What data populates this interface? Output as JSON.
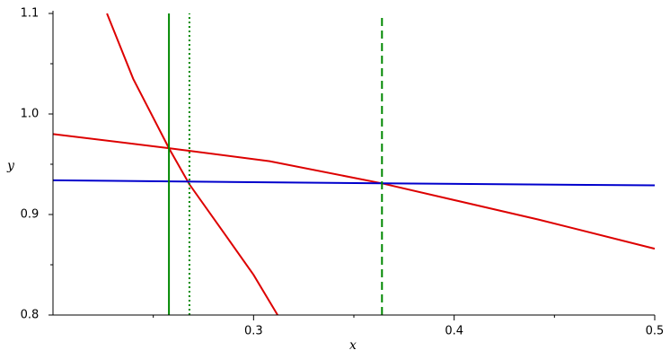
{
  "chart_data": {
    "type": "line",
    "x_label": "x",
    "y_label": "y",
    "xlim": [
      0.2,
      0.5
    ],
    "ylim": [
      0.8,
      1.1
    ],
    "xticks": [
      0.3,
      0.4,
      0.5
    ],
    "yticks": [
      0.8,
      0.9,
      {
        "value": 1.0,
        "label": "1.0"
      },
      1.1
    ],
    "xminorticks": [
      0.25,
      0.35,
      0.45
    ],
    "yminorticks": [
      0.85,
      0.95,
      1.05
    ],
    "grid": false,
    "series": [
      {
        "color": "#dd0000",
        "dash": "solid",
        "x": [
          0.2269,
          0.24,
          0.2578,
          0.268,
          0.2855,
          0.3,
          0.312
        ],
        "values": [
          1.1,
          1.035,
          0.966,
          0.93,
          0.881,
          0.84,
          0.8
        ]
      },
      {
        "color": "#dd0000",
        "dash": "solid",
        "x": [
          0.2,
          0.2578,
          0.308,
          0.364,
          0.442,
          0.5
        ],
        "values": [
          0.98,
          0.966,
          0.953,
          0.931,
          0.895,
          0.866
        ]
      },
      {
        "color": "#0000cc",
        "dash": "solid",
        "x": [
          0.2,
          0.364,
          0.5
        ],
        "values": [
          0.934,
          0.931,
          0.929
        ]
      },
      {
        "color": "#008800",
        "dash": "solid",
        "x": [
          0.2578,
          0.2578
        ],
        "values": [
          0.8,
          1.1
        ]
      },
      {
        "color": "#008800",
        "dash": "dotted",
        "x": [
          0.268,
          0.268
        ],
        "values": [
          0.8,
          1.1
        ]
      },
      {
        "color": "#008800",
        "dash": "dashed",
        "x": [
          0.364,
          0.364
        ],
        "values": [
          0.8,
          1.1
        ]
      }
    ]
  }
}
